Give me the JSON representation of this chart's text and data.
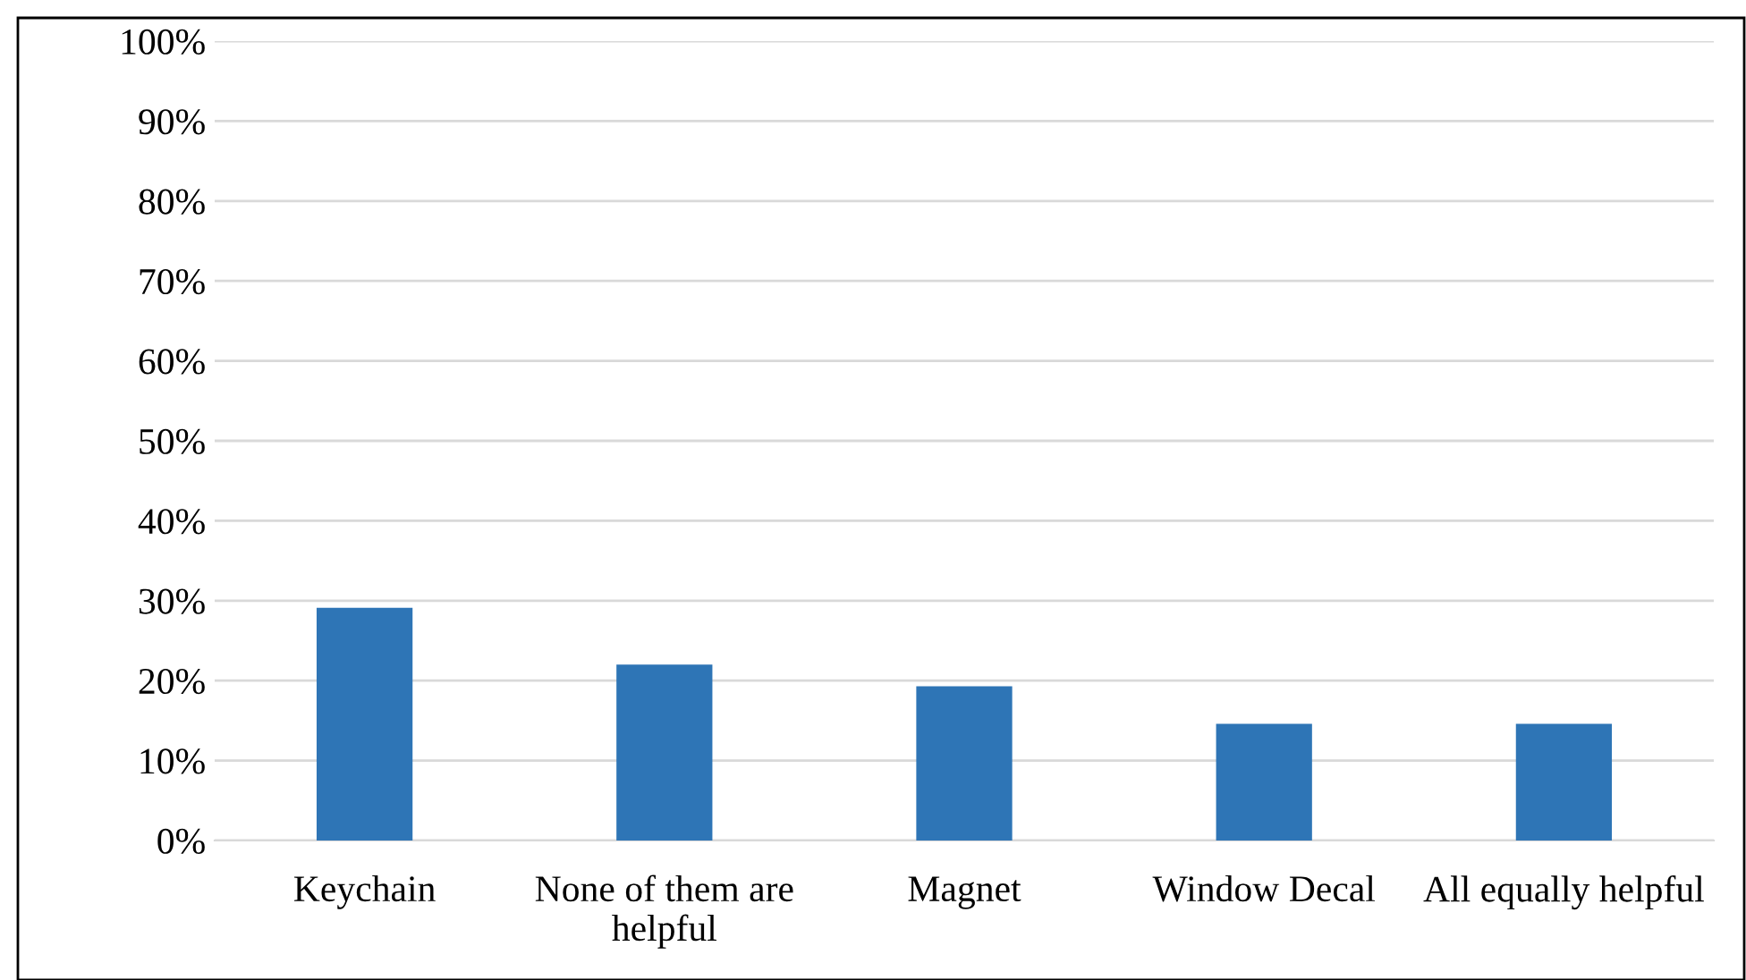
{
  "chart_data": {
    "type": "bar",
    "categories": [
      "Keychain",
      "None of them are helpful",
      "Magnet",
      "Window Decal",
      "All equally helpful"
    ],
    "values": [
      29.1,
      22.0,
      19.3,
      14.6,
      14.6
    ],
    "color": "#2e75b6",
    "ylim": [
      0,
      100
    ],
    "yticks": [
      {
        "value": 0,
        "label": "0%"
      },
      {
        "value": 10,
        "label": "10%"
      },
      {
        "value": 20,
        "label": "20%"
      },
      {
        "value": 30,
        "label": "30%"
      },
      {
        "value": 40,
        "label": "40%"
      },
      {
        "value": 50,
        "label": "50%"
      },
      {
        "value": 60,
        "label": "60%"
      },
      {
        "value": 70,
        "label": "70%"
      },
      {
        "value": 80,
        "label": "80%"
      },
      {
        "value": 90,
        "label": "90%"
      },
      {
        "value": 100,
        "label": "100%"
      }
    ],
    "grid": "y"
  }
}
